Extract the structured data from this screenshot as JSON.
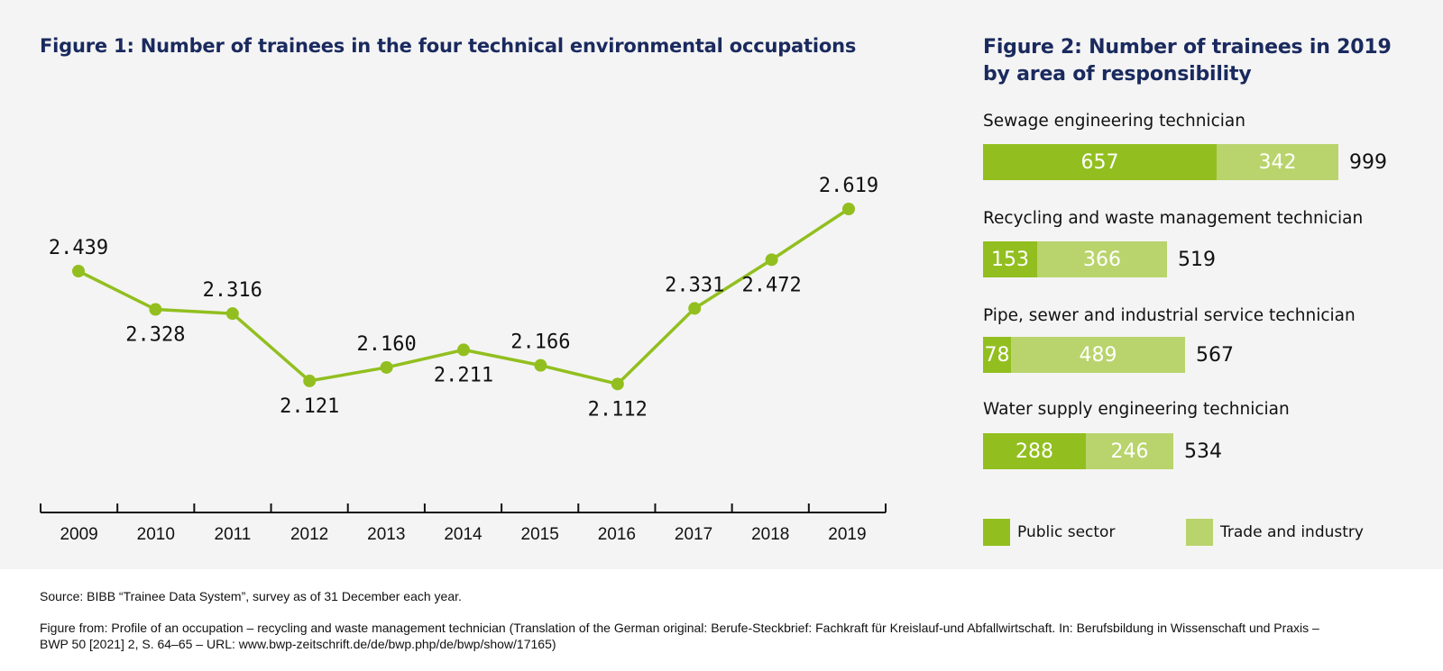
{
  "chart_data": [
    {
      "type": "line",
      "title": "Figure 1: Number of trainees in the four technical environmental occupations",
      "xlabel": "",
      "ylabel": "",
      "x": [
        "2009",
        "2010",
        "2011",
        "2012",
        "2013",
        "2014",
        "2015",
        "2016",
        "2017",
        "2018",
        "2019"
      ],
      "values": [
        2439,
        2328,
        2316,
        2121,
        2160,
        2211,
        2166,
        2112,
        2331,
        2472,
        2619
      ],
      "labels": [
        "2.439",
        "2.328",
        "2.316",
        "2.121",
        "2.160",
        "2.211",
        "2.166",
        "2.112",
        "2.331",
        "2.472",
        "2.619"
      ],
      "label_positions": [
        "above",
        "below",
        "above",
        "below",
        "above",
        "below",
        "above",
        "below",
        "above",
        "below",
        "above"
      ],
      "color": "#92bf1f",
      "grid": false,
      "legend": "none"
    },
    {
      "type": "bar",
      "orientation": "horizontal",
      "stacked": true,
      "title": "Figure 2: Number of trainees in 2019 by area of responsibility",
      "categories": [
        "Sewage engineering technician",
        "Recycling and waste management technician",
        "Pipe, sewer and industrial service technician",
        "Water supply engineering technician"
      ],
      "series": [
        {
          "name": "Public sector",
          "color": "#92bf1f",
          "values": [
            657,
            153,
            78,
            288
          ]
        },
        {
          "name": "Trade and industry",
          "color": "#b9d46c",
          "values": [
            342,
            366,
            489,
            246
          ]
        }
      ],
      "totals": [
        999,
        519,
        567,
        534
      ],
      "legend": "bottom"
    }
  ],
  "figure1": {
    "title": "Figure 1: Number of trainees in the four technical environmental occupations"
  },
  "figure2": {
    "title": "Figure 2: Number of trainees in 2019 by area of responsibility",
    "legend": [
      {
        "label": "Public sector",
        "color": "#92bf1f"
      },
      {
        "label": "Trade and industry",
        "color": "#b9d46c"
      }
    ]
  },
  "footer": {
    "source": "Source: BIBB “Trainee Data System”, survey as of 31 December each year.",
    "citation_line1": "Figure from: Profile of an occupation – recycling and waste management technician (Translation of the German original: Berufe-Steckbrief: Fachkraft für Kreislauf-und Abfallwirtschaft. In: Berufsbildung in Wissenschaft und Praxis –",
    "citation_line2": "BWP 50 [2021] 2, S. 64–65 – URL: www.bwp-zeitschrift.de/de/bwp.php/de/bwp/show/17165)"
  }
}
